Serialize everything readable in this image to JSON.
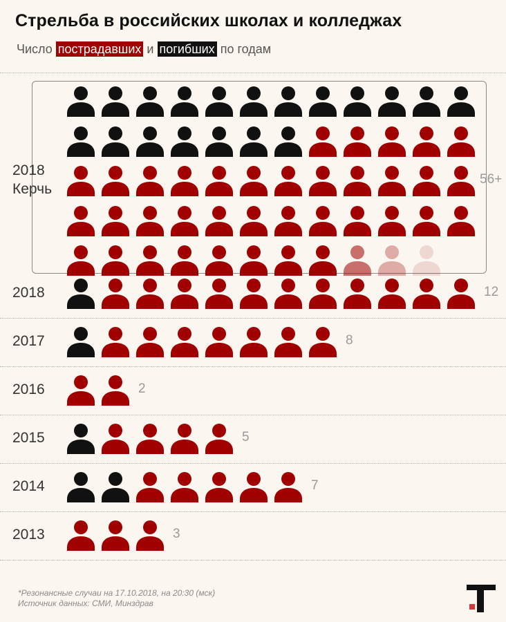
{
  "header": {
    "title": "Стрельба в российских школах и колледжах",
    "subtitle_prefix": "Число",
    "subtitle_injured": "пострадавших",
    "subtitle_and": "и",
    "subtitle_dead": "погибших",
    "subtitle_suffix": "по годам"
  },
  "colors": {
    "killed": "#111111",
    "injured": "#a00000",
    "background": "#fbf6ef"
  },
  "icon": "person-icon",
  "chart_data": {
    "type": "pictogram",
    "categories": [
      "2018 Керчь",
      "2018",
      "2017",
      "2016",
      "2015",
      "2014",
      "2013"
    ],
    "rows": [
      {
        "year": "2018",
        "place": "Керчь",
        "count_label": "56+",
        "killed": 19,
        "injured": 37,
        "faded": 3,
        "icons_per_row": 12
      },
      {
        "year": "2018",
        "place": "",
        "count_label": "12",
        "killed": 1,
        "injured": 11,
        "faded": 0,
        "icons_per_row": 12
      },
      {
        "year": "2017",
        "place": "",
        "count_label": "8",
        "killed": 1,
        "injured": 7,
        "faded": 0,
        "icons_per_row": 12
      },
      {
        "year": "2016",
        "place": "",
        "count_label": "2",
        "killed": 0,
        "injured": 2,
        "faded": 0,
        "icons_per_row": 12
      },
      {
        "year": "2015",
        "place": "",
        "count_label": "5",
        "killed": 1,
        "injured": 4,
        "faded": 0,
        "icons_per_row": 12
      },
      {
        "year": "2014",
        "place": "",
        "count_label": "7",
        "killed": 2,
        "injured": 5,
        "faded": 0,
        "icons_per_row": 12
      },
      {
        "year": "2013",
        "place": "",
        "count_label": "3",
        "killed": 0,
        "injured": 3,
        "faded": 0,
        "icons_per_row": 12
      }
    ]
  },
  "footer": {
    "note": "*Резонансные случаи на 17.10.2018, на 20:30 (мск)",
    "source": "Источник данных: СМИ, Минздрав"
  },
  "brand": {
    "logo": "T-logo"
  }
}
